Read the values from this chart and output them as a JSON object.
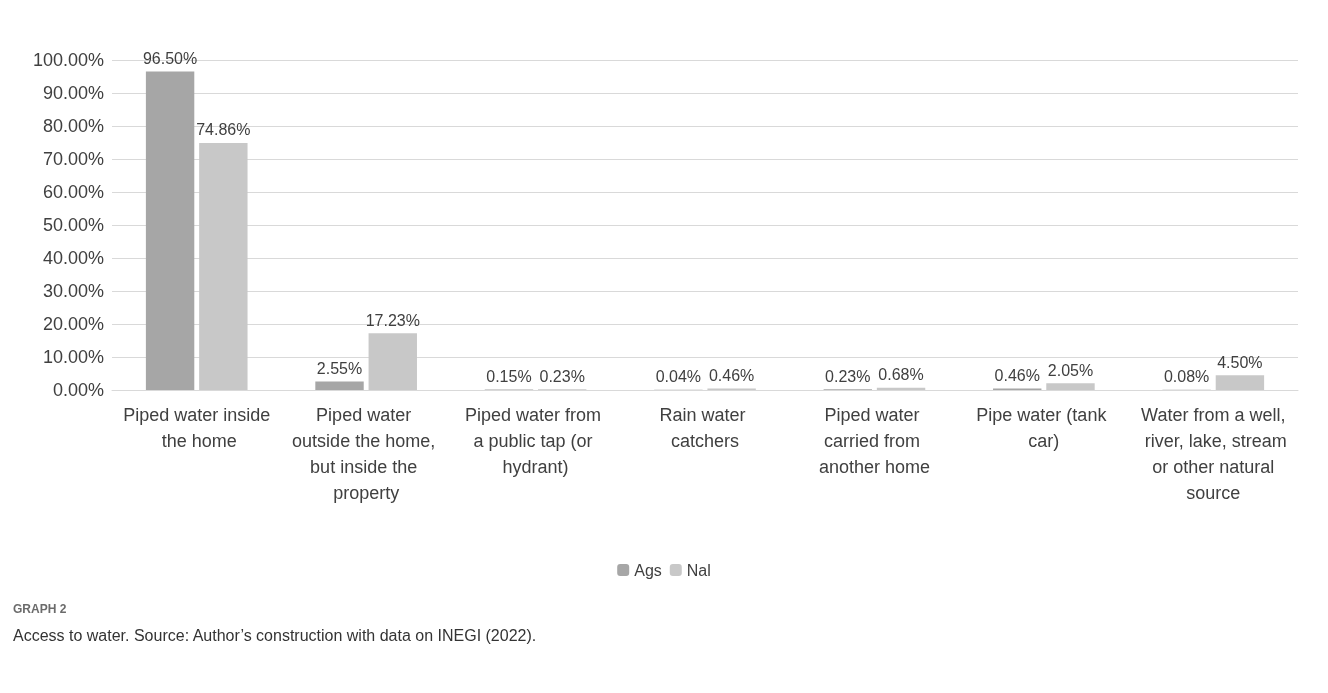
{
  "chart_data": {
    "type": "bar",
    "categories": [
      "Piped water inside the home",
      "Piped water outside the home, but inside the property",
      "Piped water from a public tap (or hydrant)",
      "Rain water catchers",
      "Piped water carried from another home",
      "Pipe water (tank car)",
      "Water from a well, river, lake, stream or other natural source"
    ],
    "series": [
      {
        "name": "Ags",
        "color": "#a6a6a6",
        "values": [
          96.5,
          2.55,
          0.15,
          0.04,
          0.23,
          0.46,
          0.08
        ],
        "value_labels": [
          "96.50%",
          "2.55%",
          "0.15%",
          "0.04%",
          "0.23%",
          "0.46%",
          "0.08%"
        ]
      },
      {
        "name": "Nal",
        "color": "#c8c8c8",
        "values": [
          74.86,
          17.23,
          0.23,
          0.46,
          0.68,
          2.05,
          4.5
        ],
        "value_labels": [
          "74.86%",
          "17.23%",
          "0.23%",
          "0.46%",
          "0.68%",
          "2.05%",
          "4.50%"
        ]
      }
    ],
    "ylim": [
      0,
      100
    ],
    "yticks": [
      {
        "value": 0,
        "label": "0.00%"
      },
      {
        "value": 10,
        "label": "10.00%"
      },
      {
        "value": 20,
        "label": "20.00%"
      },
      {
        "value": 30,
        "label": "30.00%"
      },
      {
        "value": 40,
        "label": "40.00%"
      },
      {
        "value": 50,
        "label": "50.00%"
      },
      {
        "value": 60,
        "label": "60.00%"
      },
      {
        "value": 70,
        "label": "70.00%"
      },
      {
        "value": 80,
        "label": "80.00%"
      },
      {
        "value": 90,
        "label": "90.00%"
      },
      {
        "value": 100,
        "label": "100.00%"
      }
    ],
    "grid": "y",
    "legend": "bottom",
    "annotations": [
      "GRAPH 2",
      "Access to water. Source: Author’s construction with data on INEGI (2022)."
    ]
  }
}
